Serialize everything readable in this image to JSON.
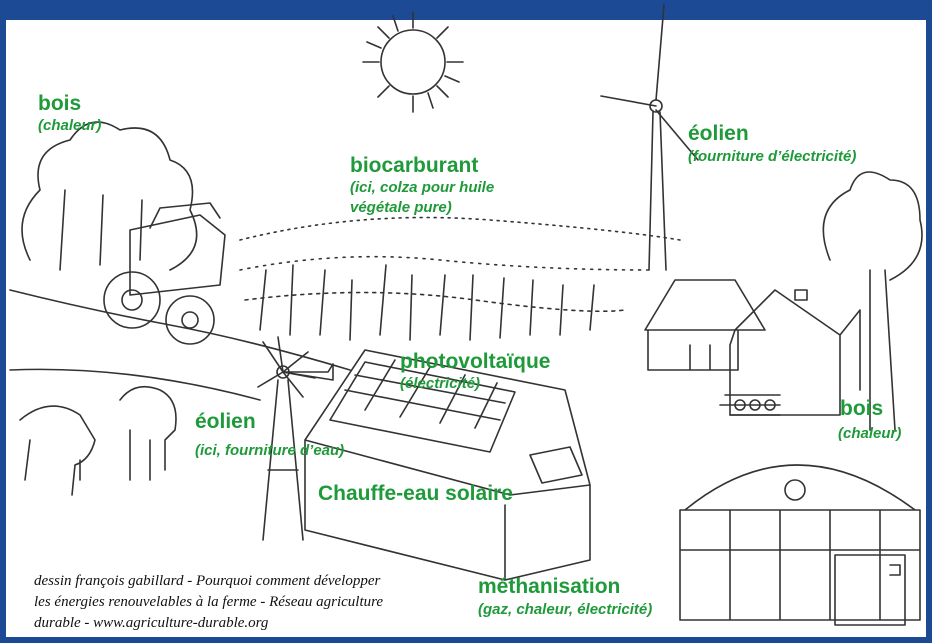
{
  "labels": [
    {
      "name": "bois",
      "detail": [
        "(chaleur)"
      ]
    },
    {
      "name": "biocarburant",
      "detail": [
        "(ici, colza pour huile",
        "végétale pure)"
      ]
    },
    {
      "name": "éolien",
      "detail": [
        "(fourniture d’électricité)"
      ]
    },
    {
      "name": "photovoltaïque",
      "detail": [
        "(électricité)"
      ]
    },
    {
      "name": "éolien",
      "detail": [
        "(ici, fourniture d’eau)"
      ]
    },
    {
      "name": "Chauffe-eau solaire",
      "detail": []
    },
    {
      "name": "bois",
      "detail": [
        "(chaleur)"
      ]
    },
    {
      "name": "méthanisation",
      "detail": [
        "(gaz, chaleur, électricité)"
      ]
    }
  ],
  "credit": [
    "dessin françois gabillard - Pourquoi comment développer",
    "les énergies renouvelables à la ferme - Réseau agriculture",
    "durable - www.agriculture-durable.org"
  ]
}
